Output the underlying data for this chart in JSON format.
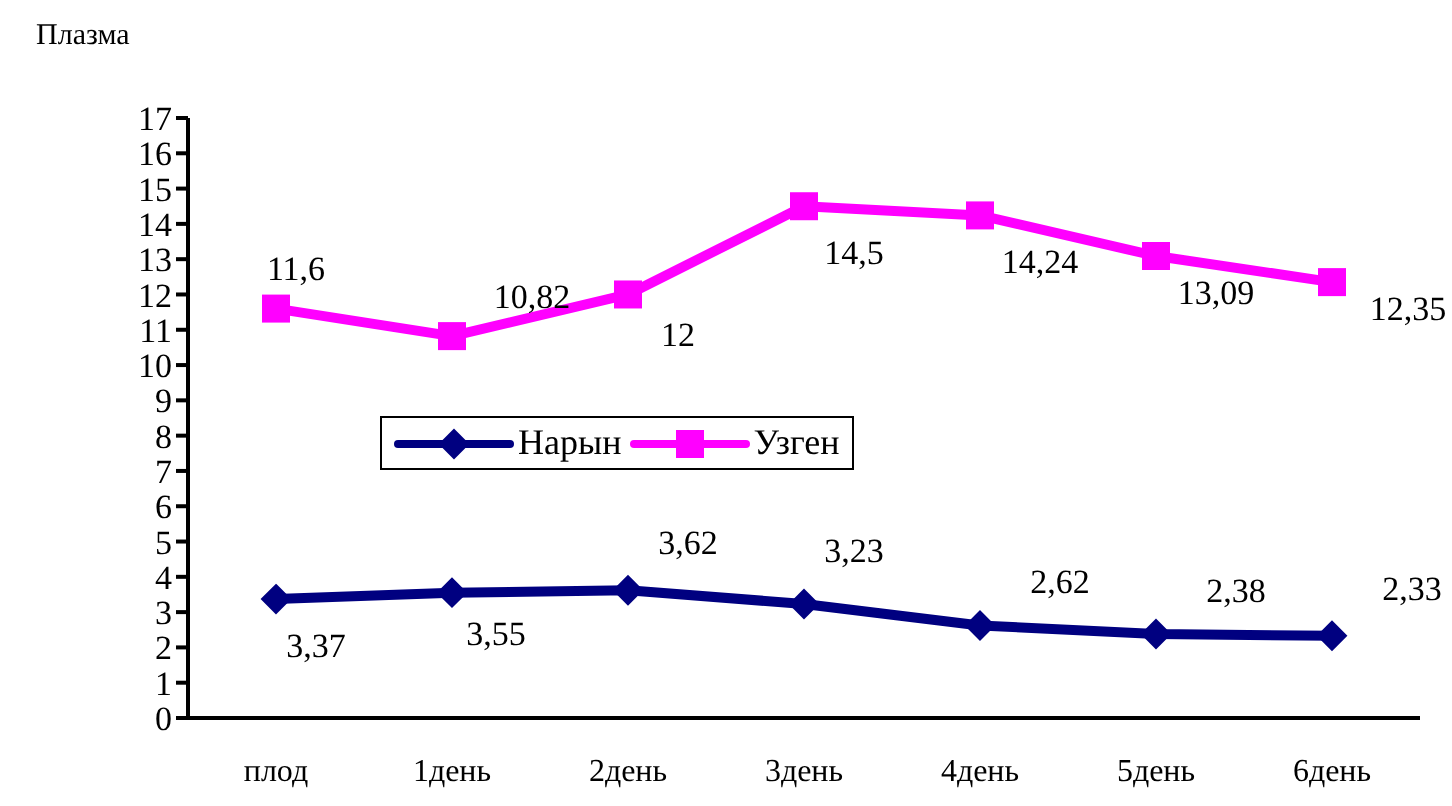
{
  "chart_data": {
    "type": "line",
    "ylabel": "Плазма",
    "categories": [
      "плод",
      "1день",
      "2день",
      "3день",
      "4день",
      "5день",
      "6день"
    ],
    "series": [
      {
        "name": "Нарын",
        "color": "#000080",
        "marker": "diamond",
        "values": [
          3.37,
          3.55,
          3.62,
          3.23,
          2.62,
          2.38,
          2.33
        ],
        "value_labels": [
          "3,37",
          "3,55",
          "3,62",
          "3,23",
          "2,62",
          "2,38",
          "2,33"
        ]
      },
      {
        "name": "Узген",
        "color": "#ff00ff",
        "marker": "square",
        "values": [
          11.6,
          10.82,
          12,
          14.5,
          14.24,
          13.09,
          12.35
        ],
        "value_labels": [
          "11,6",
          "10,82",
          "12",
          "14,5",
          "14,24",
          "13,09",
          "12,35"
        ]
      }
    ],
    "ylim": [
      0,
      17
    ],
    "yticks": [
      0,
      1,
      2,
      3,
      4,
      5,
      6,
      7,
      8,
      9,
      10,
      11,
      12,
      13,
      14,
      15,
      16,
      17
    ],
    "legend": "center"
  }
}
